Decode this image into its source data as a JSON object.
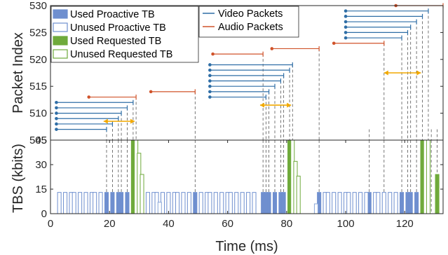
{
  "chart_data": [
    {
      "type": "line",
      "ylabel": "Packet Index",
      "xlim": [
        0,
        133
      ],
      "ylim": [
        505,
        530
      ],
      "yticks": [
        "505",
        "510",
        "515",
        "520",
        "525",
        "530"
      ],
      "legend": {
        "position": "top-center",
        "entries": [
          "Video Packets",
          "Audio Packets"
        ]
      },
      "colors": {
        "video": "#2f6ea6",
        "audio": "#d0532a"
      },
      "video_packets": [
        {
          "index": 507,
          "start": 2,
          "end": 19
        },
        {
          "index": 508,
          "start": 2,
          "end": 21
        },
        {
          "index": 509,
          "start": 2,
          "end": 23
        },
        {
          "index": 510,
          "start": 2,
          "end": 24
        },
        {
          "index": 511,
          "start": 2,
          "end": 26
        },
        {
          "index": 512,
          "start": 2,
          "end": 28
        },
        {
          "index": 513,
          "start": 54,
          "end": 73
        },
        {
          "index": 514,
          "start": 54,
          "end": 74
        },
        {
          "index": 515,
          "start": 54,
          "end": 76
        },
        {
          "index": 516,
          "start": 54,
          "end": 78
        },
        {
          "index": 517,
          "start": 54,
          "end": 79
        },
        {
          "index": 518,
          "start": 54,
          "end": 81
        },
        {
          "index": 519,
          "start": 54,
          "end": 82
        },
        {
          "index": 524,
          "start": 100,
          "end": 119
        },
        {
          "index": 525,
          "start": 100,
          "end": 121
        },
        {
          "index": 526,
          "start": 100,
          "end": 122
        },
        {
          "index": 527,
          "start": 100,
          "end": 124
        },
        {
          "index": 528,
          "start": 100,
          "end": 126
        },
        {
          "index": 529,
          "start": 100,
          "end": 128
        }
      ],
      "audio_packets": [
        {
          "index": 513,
          "start": 13,
          "end": 29
        },
        {
          "index": 514,
          "start": 34,
          "end": 49
        },
        {
          "index": 521,
          "start": 55,
          "end": 72
        },
        {
          "index": 522,
          "start": 75,
          "end": 91
        },
        {
          "index": 523,
          "start": 96,
          "end": 113
        },
        {
          "index": 530,
          "start": 117,
          "end": 133
        }
      ],
      "spans": [
        {
          "index": 508.5,
          "from": 18,
          "to": 28.5
        },
        {
          "index": 511.5,
          "from": 71,
          "to": 81.5
        },
        {
          "index": 517.5,
          "from": 113,
          "to": 125.5
        }
      ],
      "dashed_x": [
        19,
        21,
        23,
        24,
        26,
        28,
        29,
        49,
        72,
        73,
        74,
        76,
        78,
        79,
        81,
        82,
        91,
        108,
        113,
        119,
        121,
        122,
        124,
        126,
        128,
        129,
        131
      ]
    },
    {
      "type": "bar",
      "xlabel": "Time (ms)",
      "ylabel": "TBS (kbits)",
      "xlim": [
        0,
        133
      ],
      "ylim": [
        0,
        45
      ],
      "xticks": [
        "0",
        "20",
        "40",
        "60",
        "80",
        "100",
        "120"
      ],
      "yticks": [
        "0",
        "15",
        "30",
        "45"
      ],
      "legend": {
        "position": "top-left",
        "entries": [
          "Used Proactive TB",
          "Unused Proactive TB",
          "Used Requested TB",
          "Unused Requested TB"
        ]
      },
      "colors": {
        "proactive": "#6f8fcf",
        "requested": "#6faa3b"
      },
      "series": [
        {
          "name": "Used Proactive TB",
          "x": [
            19,
            21,
            23,
            24,
            26,
            49,
            72,
            73,
            74,
            76,
            78,
            79,
            91,
            108,
            119,
            121,
            122,
            124
          ],
          "values": [
            13,
            13,
            13,
            13,
            13,
            13,
            13,
            13,
            13,
            13,
            13,
            13,
            13,
            13,
            13,
            13,
            13,
            13
          ]
        },
        {
          "name": "Unused Proactive TB",
          "x": [
            3,
            5,
            7,
            8,
            10,
            12,
            14,
            15,
            17,
            33,
            35,
            36,
            38,
            40,
            42,
            43,
            45,
            47,
            51,
            53,
            54,
            56,
            58,
            60,
            61,
            63,
            65,
            67,
            69,
            93,
            94,
            96,
            98,
            100,
            101,
            103,
            105,
            107,
            110,
            111,
            113,
            115,
            117
          ],
          "values": [
            13,
            13,
            13,
            13,
            13,
            13,
            13,
            13,
            13,
            13,
            13,
            13,
            13,
            13,
            13,
            13,
            13,
            13,
            13,
            13,
            13,
            13,
            13,
            13,
            13,
            13,
            13,
            13,
            13,
            13,
            13,
            13,
            13,
            13,
            13,
            13,
            13,
            13,
            13,
            13,
            13,
            13,
            13
          ]
        },
        {
          "name": "Used Requested TB",
          "x": [
            28,
            81,
            126,
            131
          ],
          "values": [
            45,
            45,
            45,
            24
          ]
        },
        {
          "name": "Unused Requested TB",
          "x": [
            29,
            30,
            31,
            82,
            83,
            84,
            127,
            128
          ],
          "values": [
            45,
            37,
            24,
            45,
            32,
            23,
            45,
            45
          ]
        },
        {
          "name": "Unused Proactive TB",
          "x": [
            37,
            90
          ],
          "values": [
            7,
            6
          ],
          "color": "#8aa7d8"
        }
      ]
    }
  ]
}
